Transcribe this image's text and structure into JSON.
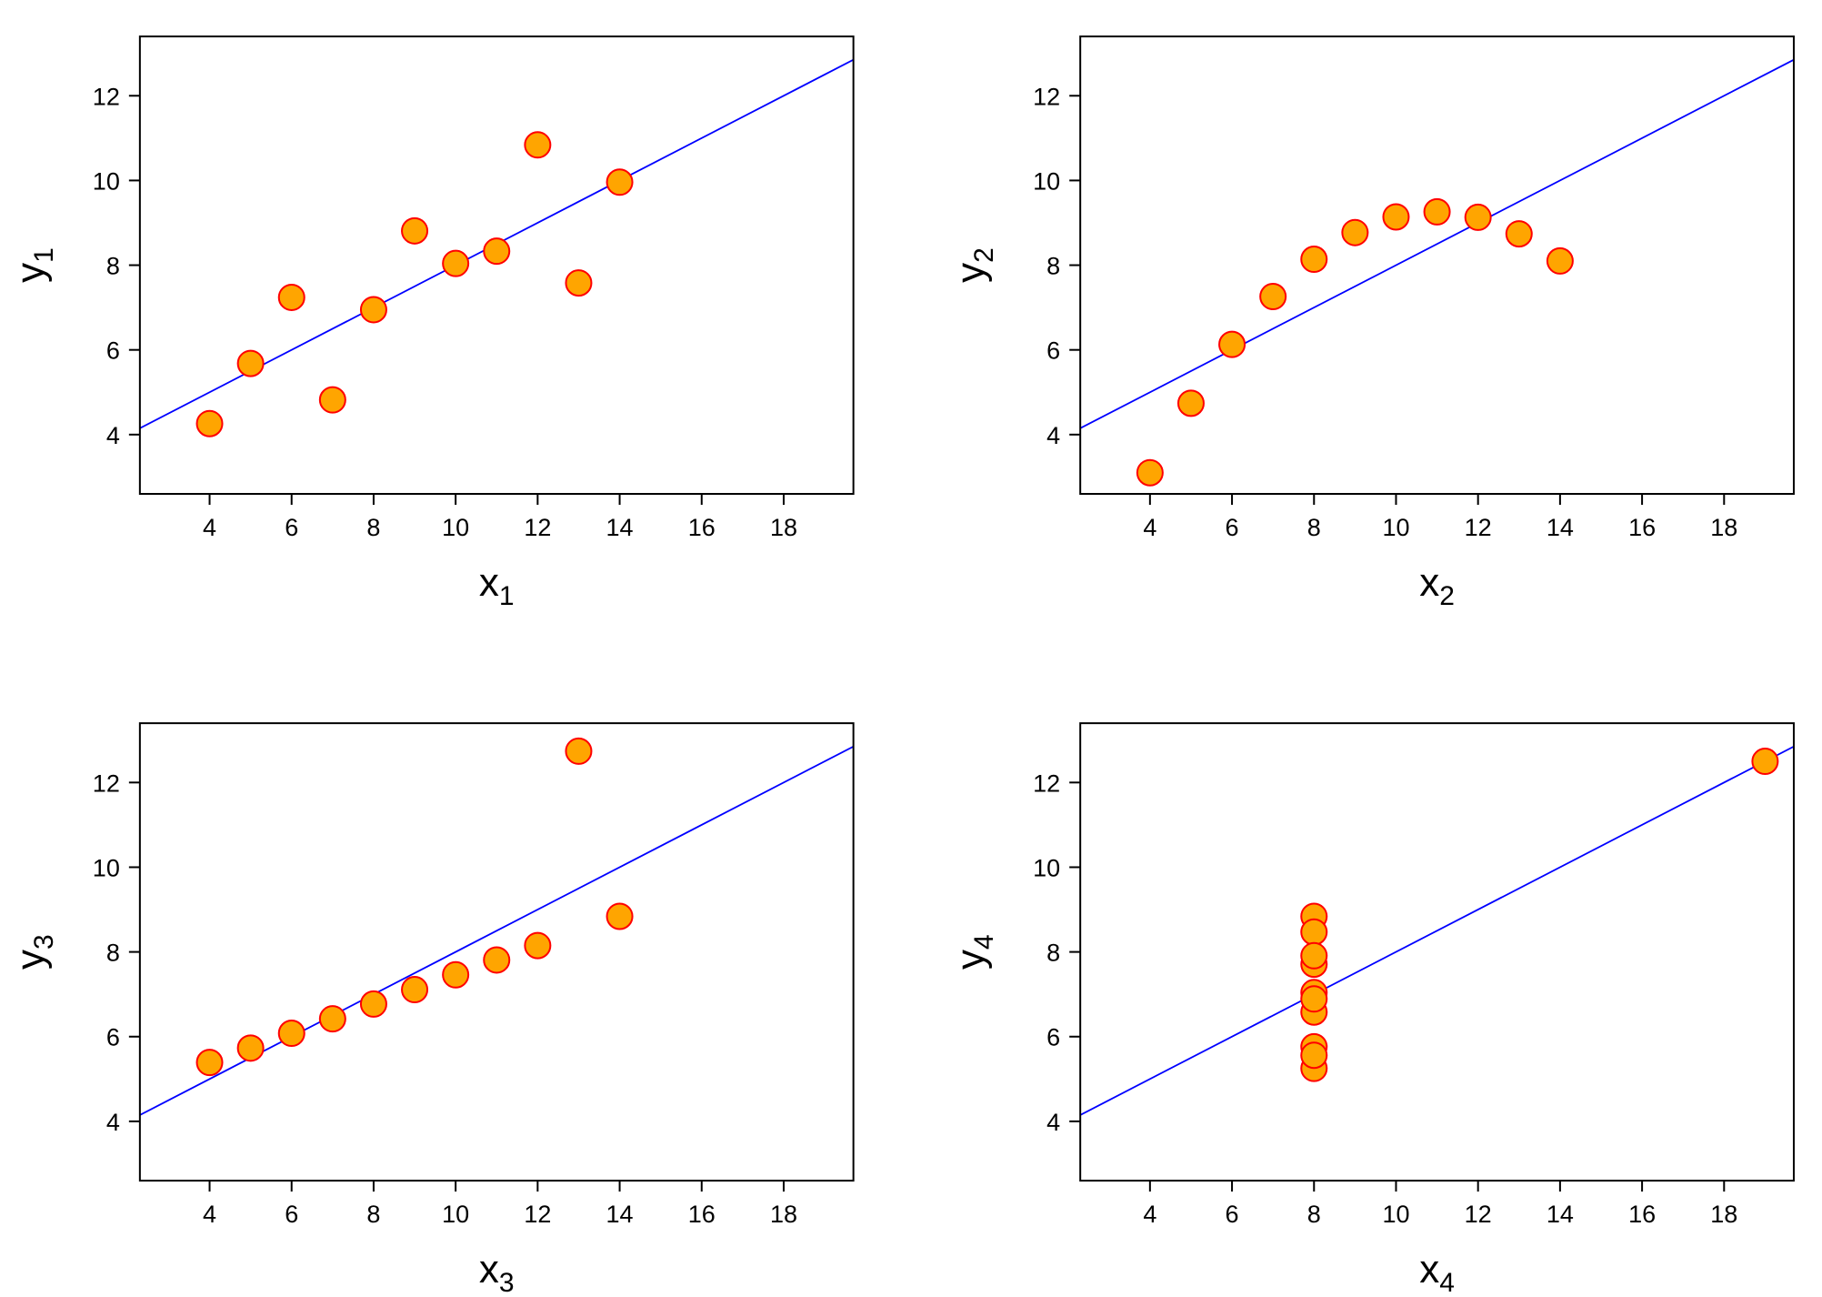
{
  "colors": {
    "point_fill": "#FFA500",
    "point_stroke": "#FF0000",
    "fit_line": "#0000FF",
    "frame": "#000000"
  },
  "chart_data": [
    {
      "type": "scatter",
      "xlabel": "x",
      "xlabel_sub": "1",
      "ylabel": "y",
      "ylabel_sub": "1",
      "xlim": [
        2.3,
        19.7
      ],
      "ylim": [
        2.6,
        13.4
      ],
      "xticks": [
        4,
        6,
        8,
        10,
        12,
        14,
        16,
        18
      ],
      "yticks": [
        4,
        6,
        8,
        10,
        12
      ],
      "grid": false,
      "fit_line": {
        "intercept": 3.0,
        "slope": 0.5
      },
      "points": [
        {
          "x": 10,
          "y": 8.04
        },
        {
          "x": 8,
          "y": 6.95
        },
        {
          "x": 13,
          "y": 7.58
        },
        {
          "x": 9,
          "y": 8.81
        },
        {
          "x": 11,
          "y": 8.33
        },
        {
          "x": 14,
          "y": 9.96
        },
        {
          "x": 6,
          "y": 7.24
        },
        {
          "x": 4,
          "y": 4.26
        },
        {
          "x": 12,
          "y": 10.84
        },
        {
          "x": 7,
          "y": 4.82
        },
        {
          "x": 5,
          "y": 5.68
        }
      ]
    },
    {
      "type": "scatter",
      "xlabel": "x",
      "xlabel_sub": "2",
      "ylabel": "y",
      "ylabel_sub": "2",
      "xlim": [
        2.3,
        19.7
      ],
      "ylim": [
        2.6,
        13.4
      ],
      "xticks": [
        4,
        6,
        8,
        10,
        12,
        14,
        16,
        18
      ],
      "yticks": [
        4,
        6,
        8,
        10,
        12
      ],
      "grid": false,
      "fit_line": {
        "intercept": 3.0,
        "slope": 0.5
      },
      "points": [
        {
          "x": 10,
          "y": 9.14
        },
        {
          "x": 8,
          "y": 8.14
        },
        {
          "x": 13,
          "y": 8.74
        },
        {
          "x": 9,
          "y": 8.77
        },
        {
          "x": 11,
          "y": 9.26
        },
        {
          "x": 14,
          "y": 8.1
        },
        {
          "x": 6,
          "y": 6.13
        },
        {
          "x": 4,
          "y": 3.1
        },
        {
          "x": 12,
          "y": 9.13
        },
        {
          "x": 7,
          "y": 7.26
        },
        {
          "x": 5,
          "y": 4.74
        }
      ]
    },
    {
      "type": "scatter",
      "xlabel": "x",
      "xlabel_sub": "3",
      "ylabel": "y",
      "ylabel_sub": "3",
      "xlim": [
        2.3,
        19.7
      ],
      "ylim": [
        2.6,
        13.4
      ],
      "xticks": [
        4,
        6,
        8,
        10,
        12,
        14,
        16,
        18
      ],
      "yticks": [
        4,
        6,
        8,
        10,
        12
      ],
      "grid": false,
      "fit_line": {
        "intercept": 3.0,
        "slope": 0.5
      },
      "points": [
        {
          "x": 10,
          "y": 7.46
        },
        {
          "x": 8,
          "y": 6.77
        },
        {
          "x": 13,
          "y": 12.74
        },
        {
          "x": 9,
          "y": 7.11
        },
        {
          "x": 11,
          "y": 7.81
        },
        {
          "x": 14,
          "y": 8.84
        },
        {
          "x": 6,
          "y": 6.08
        },
        {
          "x": 4,
          "y": 5.39
        },
        {
          "x": 12,
          "y": 8.15
        },
        {
          "x": 7,
          "y": 6.42
        },
        {
          "x": 5,
          "y": 5.73
        }
      ]
    },
    {
      "type": "scatter",
      "xlabel": "x",
      "xlabel_sub": "4",
      "ylabel": "y",
      "ylabel_sub": "4",
      "xlim": [
        2.3,
        19.7
      ],
      "ylim": [
        2.6,
        13.4
      ],
      "xticks": [
        4,
        6,
        8,
        10,
        12,
        14,
        16,
        18
      ],
      "yticks": [
        4,
        6,
        8,
        10,
        12
      ],
      "grid": false,
      "fit_line": {
        "intercept": 3.0,
        "slope": 0.5
      },
      "points": [
        {
          "x": 8,
          "y": 6.58
        },
        {
          "x": 8,
          "y": 5.76
        },
        {
          "x": 8,
          "y": 7.71
        },
        {
          "x": 8,
          "y": 8.84
        },
        {
          "x": 8,
          "y": 8.47
        },
        {
          "x": 8,
          "y": 7.04
        },
        {
          "x": 8,
          "y": 5.25
        },
        {
          "x": 19,
          "y": 12.5
        },
        {
          "x": 8,
          "y": 5.56
        },
        {
          "x": 8,
          "y": 7.91
        },
        {
          "x": 8,
          "y": 6.89
        }
      ]
    }
  ]
}
